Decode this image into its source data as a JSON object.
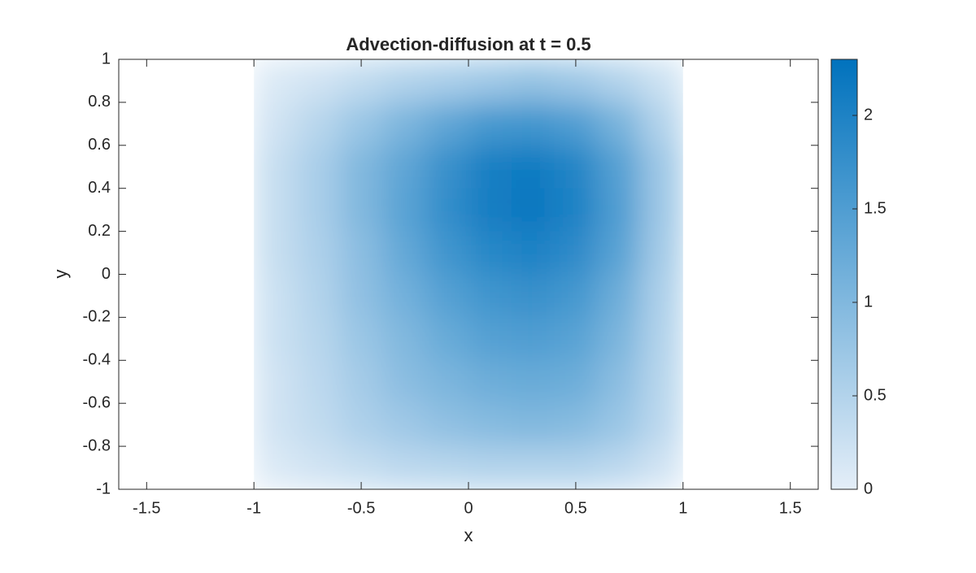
{
  "chart_data": {
    "type": "heatmap",
    "title": "Advection-diffusion at t = 0.5",
    "xlabel": "x",
    "ylabel": "y",
    "x": [
      -0.9,
      -0.7,
      -0.5,
      -0.3,
      -0.1,
      0.1,
      0.3,
      0.5,
      0.7,
      0.9
    ],
    "y": [
      0.9,
      0.7,
      0.5,
      0.3,
      0.1,
      -0.1,
      -0.3,
      -0.5,
      -0.7,
      -0.9
    ],
    "values": [
      [
        0.1,
        0.2,
        0.35,
        0.5,
        0.6,
        0.7,
        0.8,
        0.7,
        0.5,
        0.25
      ],
      [
        0.2,
        0.45,
        0.75,
        1.05,
        1.35,
        1.6,
        1.65,
        1.5,
        1.1,
        0.5
      ],
      [
        0.3,
        0.6,
        1.0,
        1.35,
        1.75,
        2.05,
        2.15,
        1.95,
        1.45,
        0.7
      ],
      [
        0.3,
        0.6,
        1.0,
        1.4,
        1.8,
        2.1,
        2.2,
        2.0,
        1.5,
        0.7
      ],
      [
        0.3,
        0.55,
        0.9,
        1.3,
        1.65,
        1.9,
        2.0,
        1.85,
        1.4,
        0.65
      ],
      [
        0.25,
        0.5,
        0.85,
        1.15,
        1.45,
        1.65,
        1.75,
        1.6,
        1.2,
        0.55
      ],
      [
        0.25,
        0.45,
        0.75,
        1.0,
        1.25,
        1.45,
        1.5,
        1.4,
        1.05,
        0.5
      ],
      [
        0.2,
        0.4,
        0.65,
        0.9,
        1.05,
        1.2,
        1.25,
        1.2,
        0.9,
        0.45
      ],
      [
        0.2,
        0.35,
        0.55,
        0.7,
        0.85,
        0.95,
        1.0,
        0.95,
        0.75,
        0.4
      ],
      [
        0.1,
        0.2,
        0.3,
        0.4,
        0.45,
        0.5,
        0.5,
        0.5,
        0.4,
        0.2
      ]
    ],
    "xlim": [
      -1.63,
      1.63
    ],
    "ylim": [
      -1,
      1
    ],
    "xticks": [
      -1.5,
      -1,
      -0.5,
      0,
      0.5,
      1,
      1.5
    ],
    "yticks": [
      -1,
      -0.8,
      -0.6,
      -0.4,
      -0.2,
      0,
      0.2,
      0.4,
      0.6,
      0.8,
      1
    ],
    "clim": [
      0,
      2.3
    ],
    "cticks": [
      0,
      0.5,
      1,
      1.5,
      2
    ],
    "colormap": [
      "#e4eef8",
      "#0072bd"
    ]
  }
}
